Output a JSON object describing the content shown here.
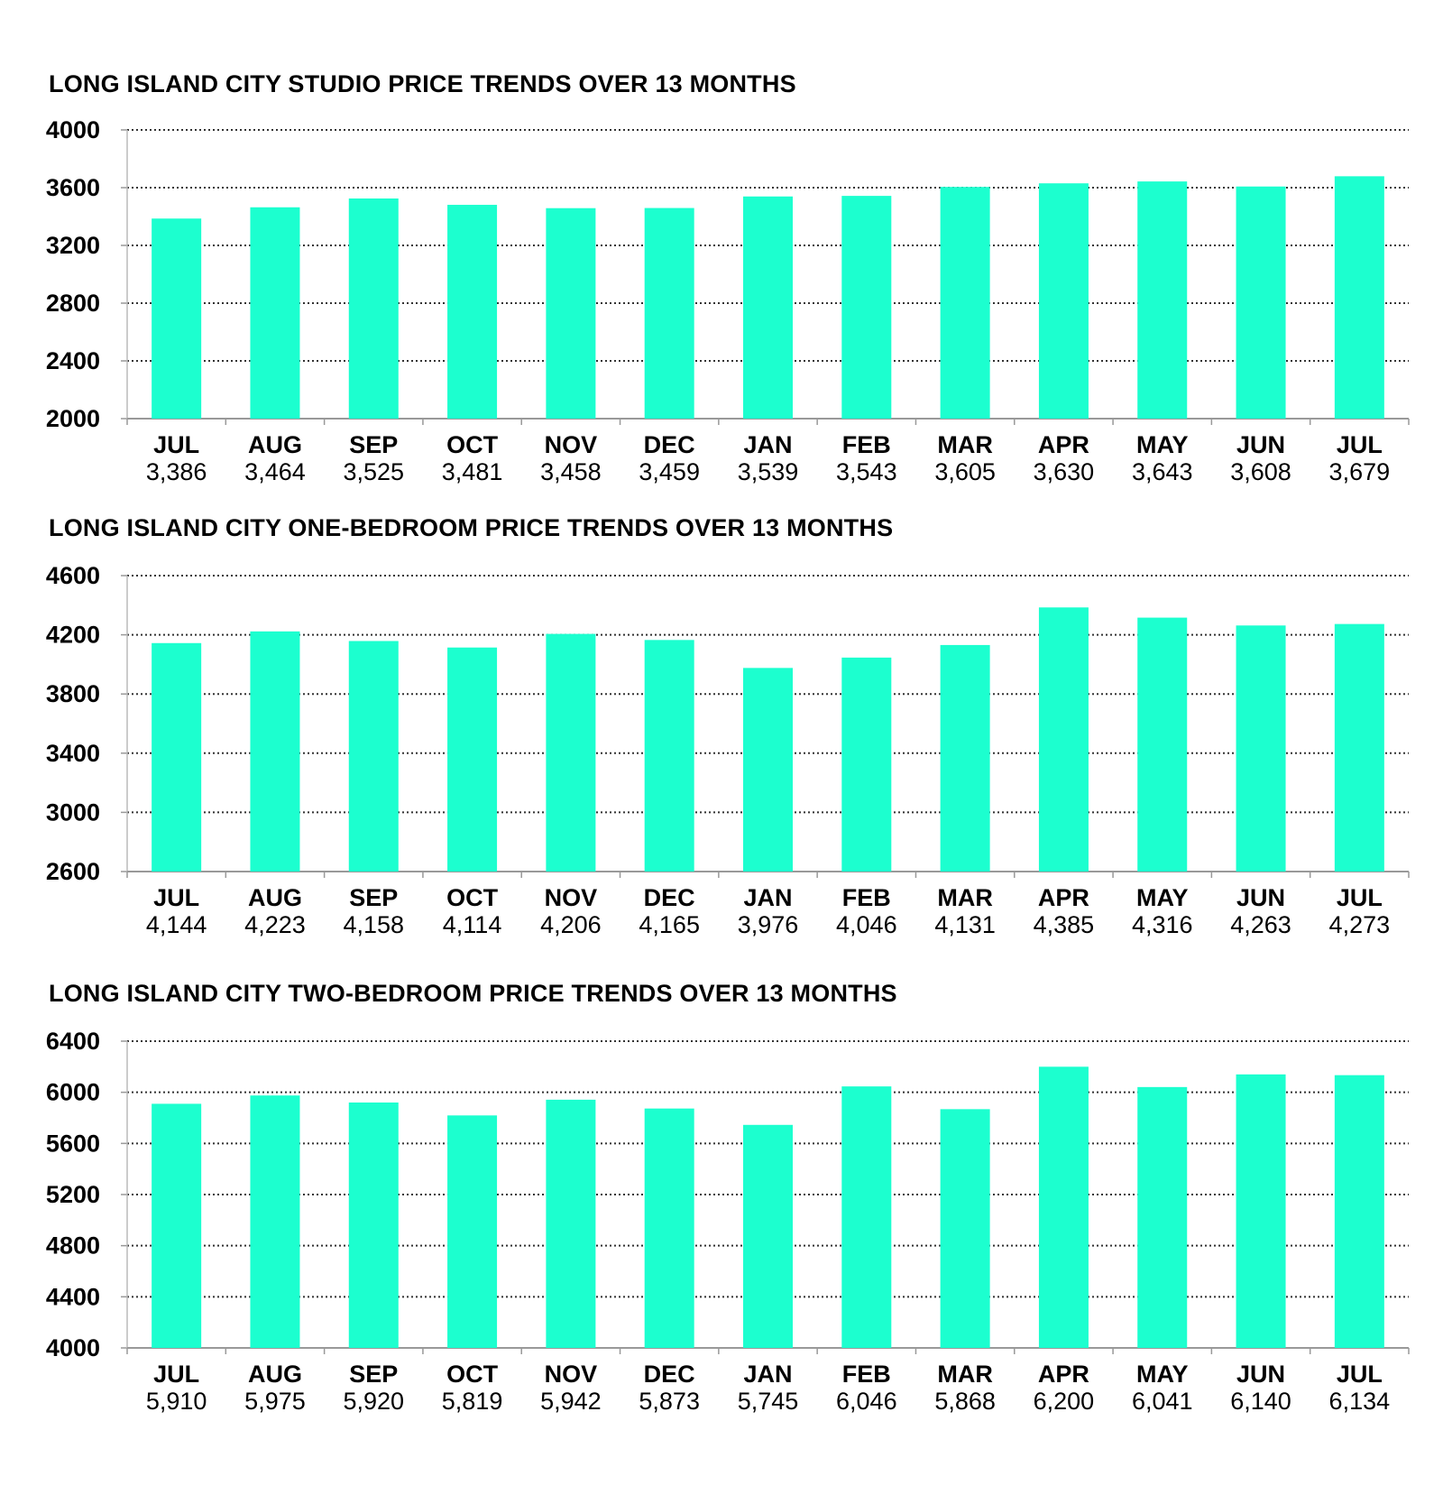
{
  "chart_data": [
    {
      "type": "bar",
      "title": "LONG ISLAND CITY STUDIO PRICE TRENDS OVER 13 MONTHS",
      "categories": [
        "JUL",
        "AUG",
        "SEP",
        "OCT",
        "NOV",
        "DEC",
        "JAN",
        "FEB",
        "MAR",
        "APR",
        "MAY",
        "JUN",
        "JUL"
      ],
      "values": [
        3386,
        3464,
        3525,
        3481,
        3458,
        3459,
        3539,
        3543,
        3605,
        3630,
        3643,
        3608,
        3679
      ],
      "value_labels": [
        "3,386",
        "3,464",
        "3,525",
        "3,481",
        "3,458",
        "3,459",
        "3,539",
        "3,543",
        "3,605",
        "3,630",
        "3,643",
        "3,608",
        "3,679"
      ],
      "ylim": [
        2000,
        4000
      ],
      "yticks": [
        "2000",
        "2400",
        "2800",
        "3200",
        "3600",
        "4000"
      ],
      "grid": "dotted-horizontal",
      "bar_color": "#1CFFCF",
      "xlabel": "",
      "ylabel": ""
    },
    {
      "type": "bar",
      "title": "LONG ISLAND CITY ONE-BEDROOM PRICE TRENDS OVER 13 MONTHS",
      "categories": [
        "JUL",
        "AUG",
        "SEP",
        "OCT",
        "NOV",
        "DEC",
        "JAN",
        "FEB",
        "MAR",
        "APR",
        "MAY",
        "JUN",
        "JUL"
      ],
      "values": [
        4144,
        4223,
        4158,
        4114,
        4206,
        4165,
        3976,
        4046,
        4131,
        4385,
        4316,
        4263,
        4273
      ],
      "value_labels": [
        "4,144",
        "4,223",
        "4,158",
        "4,114",
        "4,206",
        "4,165",
        "3,976",
        "4,046",
        "4,131",
        "4,385",
        "4,316",
        "4,263",
        "4,273"
      ],
      "ylim": [
        2600,
        4600
      ],
      "yticks": [
        "2600",
        "3000",
        "3400",
        "3800",
        "4200",
        "4600"
      ],
      "grid": "dotted-horizontal",
      "bar_color": "#1CFFCF",
      "xlabel": "",
      "ylabel": ""
    },
    {
      "type": "bar",
      "title": "LONG ISLAND CITY TWO-BEDROOM PRICE TRENDS OVER 13 MONTHS",
      "categories": [
        "JUL",
        "AUG",
        "SEP",
        "OCT",
        "NOV",
        "DEC",
        "JAN",
        "FEB",
        "MAR",
        "APR",
        "MAY",
        "JUN",
        "JUL"
      ],
      "values": [
        5910,
        5975,
        5920,
        5819,
        5942,
        5873,
        5745,
        6046,
        5868,
        6200,
        6041,
        6140,
        6134
      ],
      "value_labels": [
        "5,910",
        "5,975",
        "5,920",
        "5,819",
        "5,942",
        "5,873",
        "5,745",
        "6,046",
        "5,868",
        "6,200",
        "6,041",
        "6,140",
        "6,134"
      ],
      "ylim": [
        4000,
        6400
      ],
      "yticks": [
        "4000",
        "4400",
        "4800",
        "5200",
        "5600",
        "6000",
        "6400"
      ],
      "grid": "dotted-horizontal",
      "bar_color": "#1CFFCF",
      "xlabel": "",
      "ylabel": ""
    }
  ]
}
